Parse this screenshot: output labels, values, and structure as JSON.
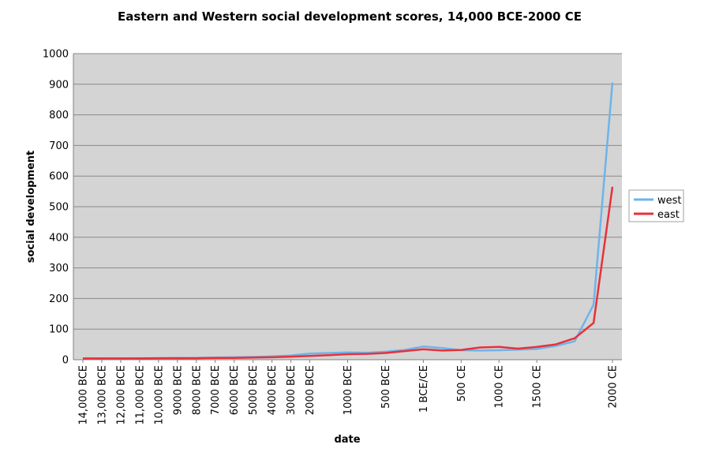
{
  "chart_data": {
    "type": "line",
    "title": "Eastern and Western social development scores, 14,000 BCE-2000 CE",
    "xlabel": "date",
    "ylabel": "social development",
    "ylim": [
      0,
      1000
    ],
    "yticks": [
      0,
      100,
      200,
      300,
      400,
      500,
      600,
      700,
      800,
      900,
      1000
    ],
    "grid": true,
    "legend_position": "right",
    "colors": {
      "plot_background": "#d4d4d4",
      "gridline": "#8a8a8a",
      "axis": "#808080"
    },
    "x": [
      "14,000 BCE",
      "13,000 BCE",
      "12,000 BCE",
      "11,000 BCE",
      "10,000 BCE",
      "9000 BCE",
      "8000 BCE",
      "7000 BCE",
      "6000 BCE",
      "5000 BCE",
      "4000 BCE",
      "3000 BCE",
      "2000 BCE",
      "1500 BCE",
      "1000 BCE",
      "750 BCE",
      "500 BCE",
      "250 BCE",
      "1 BCE/CE",
      "250 CE",
      "500 CE",
      "750 CE",
      "1000 CE",
      "1250 CE",
      "1500 CE",
      "1750 CE",
      "1800 CE",
      "1900 CE",
      "2000 CE"
    ],
    "x_tick_labels": [
      "14,000 BCE",
      "13,000 BCE",
      "12,000 BCE",
      "11,000 BCE",
      "10,000 BCE",
      "9000 BCE",
      "8000 BCE",
      "7000 BCE",
      "6000 BCE",
      "5000 BCE",
      "4000 BCE",
      "3000 BCE",
      "2000 BCE",
      "1000 BCE",
      "500 BCE",
      "1 BCE/CE",
      "500 CE",
      "1000 CE",
      "1500 CE",
      "2000 CE"
    ],
    "series": [
      {
        "name": "west",
        "color": "#6eb4e8",
        "values": [
          4,
          4,
          4,
          5,
          5,
          6,
          6,
          7,
          8,
          9,
          11,
          14,
          20,
          22,
          24,
          23,
          26,
          32,
          43,
          38,
          31,
          30,
          31,
          33,
          35,
          45,
          60,
          180,
          906
        ]
      },
      {
        "name": "east",
        "color": "#e8313b",
        "values": [
          4,
          4,
          4,
          4,
          5,
          5,
          5,
          6,
          6,
          7,
          8,
          10,
          12,
          15,
          18,
          19,
          22,
          28,
          34,
          30,
          32,
          40,
          42,
          36,
          42,
          50,
          70,
          120,
          565
        ]
      }
    ]
  }
}
